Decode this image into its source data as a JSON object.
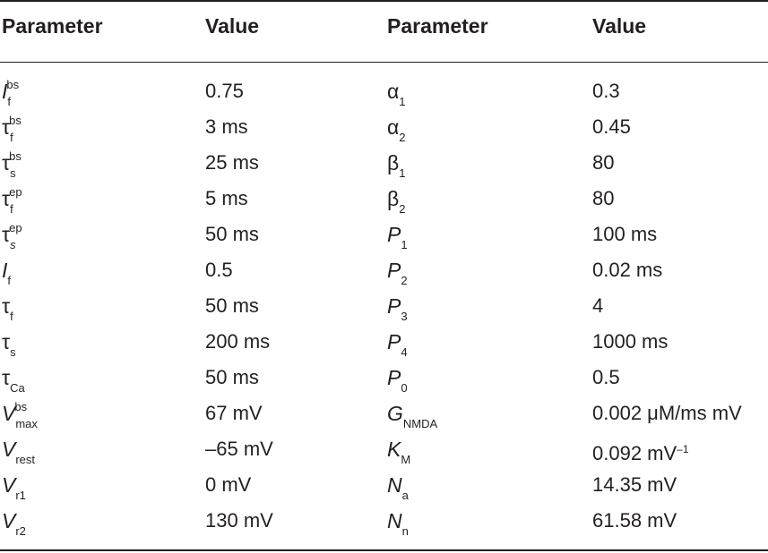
{
  "headers": [
    "Parameter",
    "Value",
    "Parameter",
    "Value"
  ],
  "rows": [
    {
      "p1": {
        "main": "I",
        "italic": true,
        "sub": "f",
        "sup": "bs"
      },
      "v1": "0.75",
      "p2": {
        "main": "α",
        "italic": false,
        "sub": "1",
        "sup": ""
      },
      "v2": "0.3"
    },
    {
      "p1": {
        "main": "τ",
        "italic": false,
        "sub": "f",
        "sup": "bs"
      },
      "v1": "3 ms",
      "p2": {
        "main": "α",
        "italic": false,
        "sub": "2",
        "sup": ""
      },
      "v2": "0.45"
    },
    {
      "p1": {
        "main": "τ",
        "italic": false,
        "sub": "s",
        "sup": "bs"
      },
      "v1": "25 ms",
      "p2": {
        "main": "β",
        "italic": false,
        "sub": "1",
        "sup": ""
      },
      "v2": "80"
    },
    {
      "p1": {
        "main": "τ",
        "italic": false,
        "sub": "f",
        "sup": "ep"
      },
      "v1": "5 ms",
      "p2": {
        "main": "β",
        "italic": false,
        "sub": "2",
        "sup": ""
      },
      "v2": "80"
    },
    {
      "p1": {
        "main": "τ",
        "italic": false,
        "sub": "s",
        "subItalic": true,
        "sup": "ep"
      },
      "v1": "50 ms",
      "p2": {
        "main": "P",
        "italic": true,
        "sub": "1",
        "sup": ""
      },
      "v2": "100 ms"
    },
    {
      "p1": {
        "main": "I",
        "italic": true,
        "sub": "f",
        "sup": ""
      },
      "v1": "0.5",
      "p2": {
        "main": "P",
        "italic": true,
        "sub": "2",
        "sup": ""
      },
      "v2": "0.02 ms"
    },
    {
      "p1": {
        "main": "τ",
        "italic": false,
        "sub": "f",
        "sup": ""
      },
      "v1": "50 ms",
      "p2": {
        "main": "P",
        "italic": true,
        "sub": "3",
        "sup": ""
      },
      "v2": "4"
    },
    {
      "p1": {
        "main": "τ",
        "italic": false,
        "sub": "s",
        "sup": ""
      },
      "v1": "200 ms",
      "p2": {
        "main": "P",
        "italic": true,
        "sub": "4",
        "sup": ""
      },
      "v2": "1000 ms"
    },
    {
      "p1": {
        "main": "τ",
        "italic": false,
        "sub": "Ca",
        "sup": ""
      },
      "v1": "50 ms",
      "p2": {
        "main": "P",
        "italic": true,
        "sub": "0",
        "sup": ""
      },
      "v2": "0.5"
    },
    {
      "p1": {
        "main": "V",
        "italic": true,
        "sub": "max",
        "sup": "bs"
      },
      "v1": "67 mV",
      "p2": {
        "main": "G",
        "italic": true,
        "sub": "NMDA",
        "sup": ""
      },
      "v2": "0.002 μM/ms mV"
    },
    {
      "p1": {
        "main": "V",
        "italic": true,
        "sub": "rest",
        "sup": ""
      },
      "v1": "–65 mV",
      "p2": {
        "main": "K",
        "italic": true,
        "sub": "M",
        "sup": ""
      },
      "v2": "0.092 mV",
      "v2sup": "–1"
    },
    {
      "p1": {
        "main": "V",
        "italic": true,
        "sub": "r1",
        "sup": ""
      },
      "v1": "0 mV",
      "p2": {
        "main": "N",
        "italic": true,
        "sub": "a",
        "sup": ""
      },
      "v2": "14.35 mV"
    },
    {
      "p1": {
        "main": "V",
        "italic": true,
        "sub": "r2",
        "sup": ""
      },
      "v1": "130 mV",
      "p2": {
        "main": "N",
        "italic": true,
        "sub": "n",
        "sup": ""
      },
      "v2": "61.58 mV"
    }
  ]
}
